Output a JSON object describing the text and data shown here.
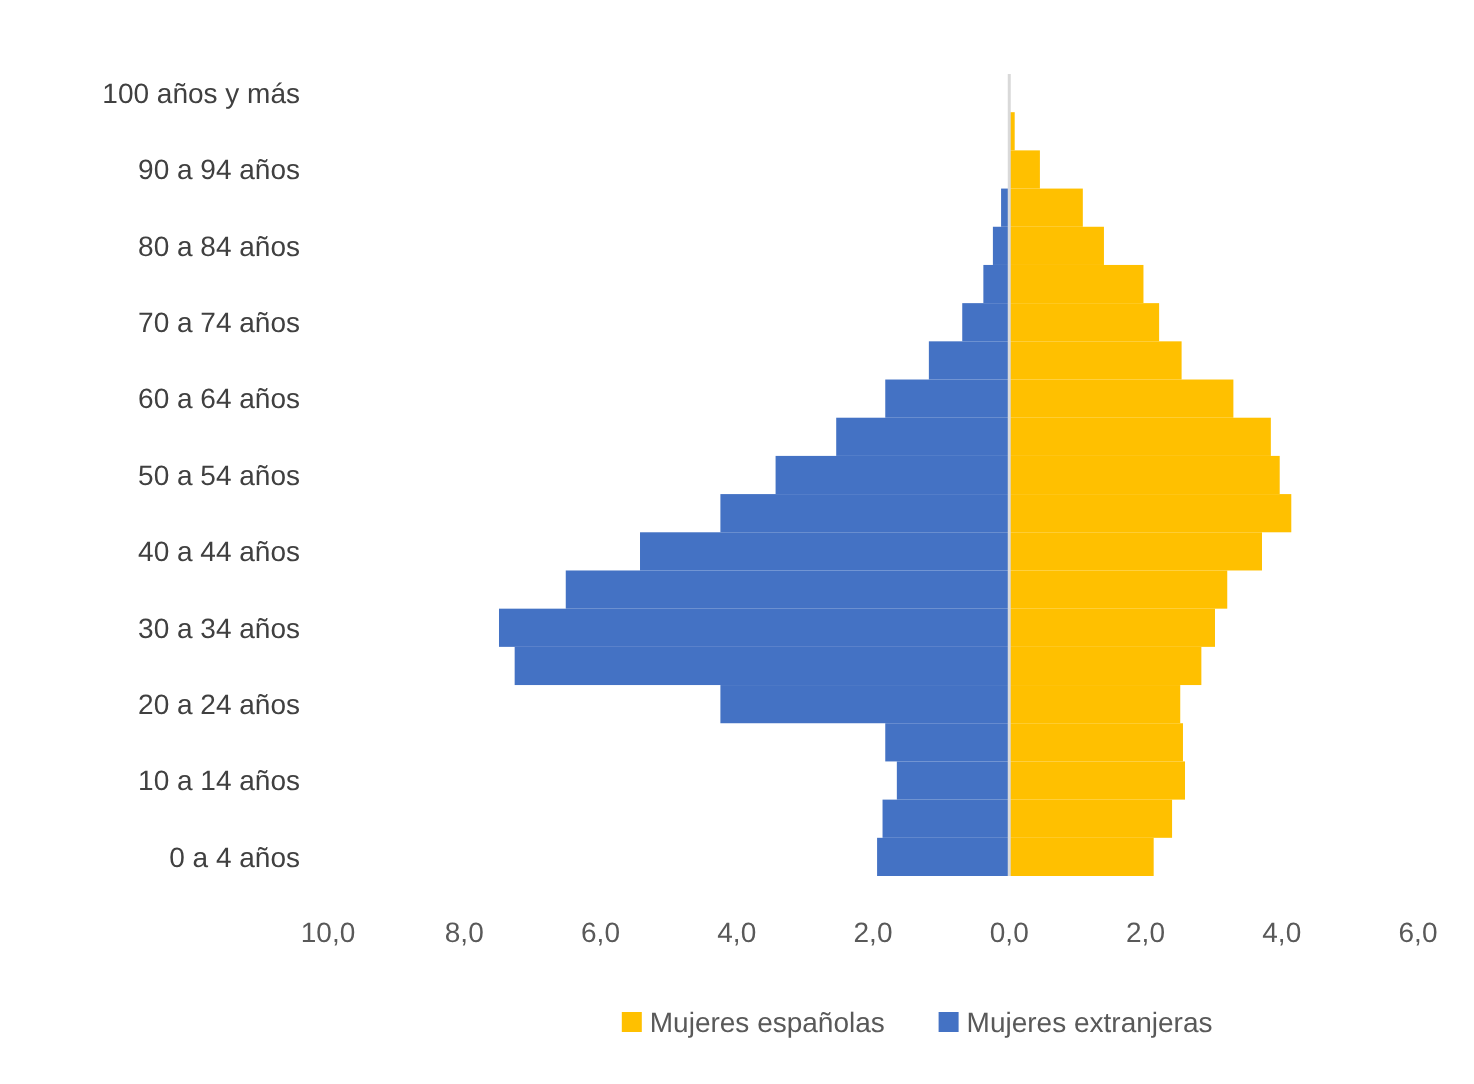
{
  "chart_data": {
    "type": "bar",
    "orientation": "horizontal",
    "categories": [
      "100 años y más",
      null,
      "90 a 94 años",
      null,
      "80 a 84 años",
      null,
      "70 a 74 años",
      null,
      "60 a 64 años",
      null,
      "50 a 54 años",
      null,
      "40 a 44 años",
      null,
      "30 a 34 años",
      null,
      "20 a 24 años",
      null,
      "10 a 14 años",
      null,
      "0 a 4 años"
    ],
    "series": [
      {
        "name": "Mujeres españolas",
        "color": "#ffc000",
        "values": [
          0,
          0.08,
          0.45,
          1.08,
          1.39,
          1.97,
          2.2,
          2.53,
          3.29,
          3.84,
          3.97,
          4.14,
          3.71,
          3.2,
          3.02,
          2.82,
          2.51,
          2.55,
          2.58,
          2.39,
          2.12
        ]
      },
      {
        "name": "Mujeres extranjeras",
        "color": "#4472c4",
        "values": [
          0,
          0,
          0,
          -0.12,
          -0.24,
          -0.38,
          -0.69,
          -1.18,
          -1.82,
          -2.54,
          -3.43,
          -4.24,
          -5.42,
          -6.51,
          -7.49,
          -7.26,
          -4.24,
          -1.82,
          -1.65,
          -1.86,
          -1.94
        ]
      }
    ],
    "xlim": [
      -10,
      6
    ],
    "xticks": [
      {
        "value": -10,
        "label": "10,0"
      },
      {
        "value": -8,
        "label": "8,0"
      },
      {
        "value": -6,
        "label": "6,0"
      },
      {
        "value": -4,
        "label": "4,0"
      },
      {
        "value": -2,
        "label": "2,0"
      },
      {
        "value": 0,
        "label": "0,0"
      },
      {
        "value": 2,
        "label": "2,0"
      },
      {
        "value": 4,
        "label": "4,0"
      },
      {
        "value": 6,
        "label": "6,0"
      }
    ],
    "stacked": true,
    "legend": "bottom"
  }
}
